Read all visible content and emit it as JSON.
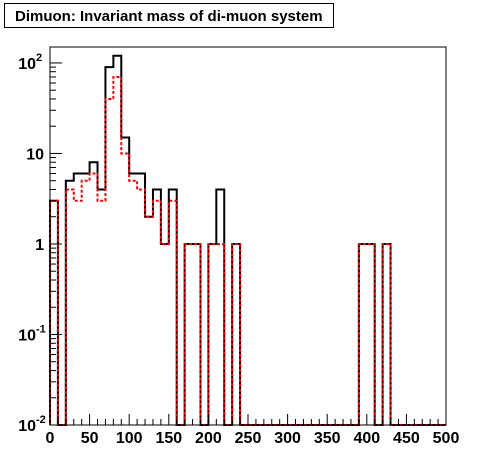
{
  "chart_data": {
    "type": "histogram",
    "title": "Dimuon: Invariant mass of di-muon system",
    "xlabel": "",
    "ylabel": "",
    "xlim": [
      0,
      500
    ],
    "ylim": [
      0.01,
      150
    ],
    "yscale": "log",
    "bin_width": 10,
    "x_ticks": [
      0,
      50,
      100,
      150,
      200,
      250,
      300,
      350,
      400,
      450,
      500
    ],
    "y_ticks": [
      {
        "value": 0.01,
        "base": "10",
        "exp": "-2"
      },
      {
        "value": 0.1,
        "base": "10",
        "exp": "-1"
      },
      {
        "value": 1,
        "base": "1",
        "exp": ""
      },
      {
        "value": 10,
        "base": "10",
        "exp": ""
      },
      {
        "value": 100,
        "base": "10",
        "exp": "2"
      }
    ],
    "grid": false,
    "series": [
      {
        "color": "#000000",
        "style": "solid",
        "values": [
          3,
          0.01,
          5,
          6,
          6,
          8,
          4,
          90,
          120,
          15,
          6,
          6,
          2,
          4,
          1,
          4,
          0.01,
          1,
          1,
          0.01,
          1,
          4,
          0.01,
          1,
          0.01,
          0.01,
          0.01,
          0.01,
          0.01,
          0.01,
          0.01,
          0.01,
          0.01,
          0.01,
          0.01,
          0.01,
          0.01,
          0.01,
          0.01,
          1,
          1,
          0.01,
          1,
          0.01,
          0.01,
          0.01,
          0.01,
          0.01,
          0.01,
          0.01
        ]
      },
      {
        "color": "#ff0000",
        "style": "dashed",
        "values": [
          3,
          0.01,
          4,
          3,
          5,
          6,
          3,
          40,
          70,
          10,
          5,
          4,
          2,
          3,
          1,
          3,
          0.01,
          1,
          1,
          0.01,
          1,
          1,
          0.01,
          1,
          0.01,
          0.01,
          0.01,
          0.01,
          0.01,
          0.01,
          0.01,
          0.01,
          0.01,
          0.01,
          0.01,
          0.01,
          0.01,
          0.01,
          0.01,
          1,
          1,
          0.01,
          1,
          0.01,
          0.01,
          0.01,
          0.01,
          0.01,
          0.01,
          0.01
        ]
      }
    ]
  }
}
